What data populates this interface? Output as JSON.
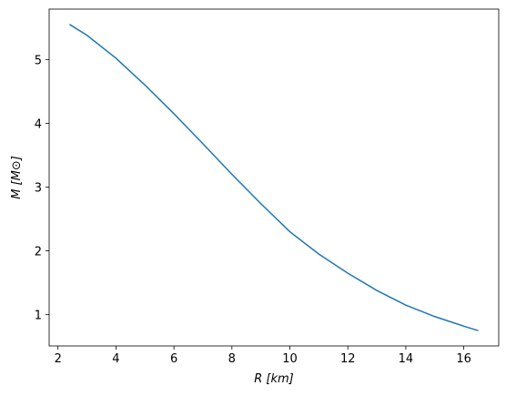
{
  "chart_data": {
    "type": "line",
    "xlabel": "R [km]",
    "ylabel": "M [M⊙]",
    "x": [
      2.4,
      3,
      4,
      5,
      6,
      7,
      8,
      9,
      10,
      11,
      12,
      13,
      14,
      15,
      16,
      16.5
    ],
    "series": [
      {
        "color": "#1f77b4",
        "values": [
          5.55,
          5.38,
          5.02,
          4.6,
          4.15,
          3.68,
          3.2,
          2.74,
          2.3,
          1.95,
          1.65,
          1.38,
          1.15,
          0.97,
          0.82,
          0.75
        ]
      }
    ],
    "xlim": [
      1.695,
      17.205
    ],
    "xticks": [
      2,
      4,
      6,
      8,
      10,
      12,
      14,
      16
    ],
    "ylim": [
      0.51,
      5.79
    ],
    "yticks": [
      1,
      2,
      3,
      4,
      5
    ]
  }
}
